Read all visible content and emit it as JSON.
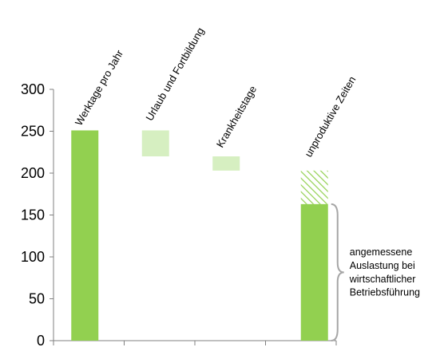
{
  "chart_data": {
    "type": "bar",
    "title": "",
    "xlabel": "",
    "ylabel": "",
    "ylim": [
      0,
      300
    ],
    "yticks": [
      0,
      50,
      100,
      150,
      200,
      250,
      300
    ],
    "grid": false,
    "legend": "none",
    "categories": [
      "Werktage pro Jahr",
      "Urlaub und Fortbildung",
      "Krankheitstage",
      "unproduktive Zeiten"
    ],
    "bars": [
      {
        "category": "Werktage pro Jahr",
        "style": "solid",
        "from": 0,
        "to": 251
      },
      {
        "category": "Urlaub und Fortbildung",
        "style": "light",
        "from": 220,
        "to": 251
      },
      {
        "category": "Krankheitstage",
        "style": "light",
        "from": 203,
        "to": 220
      },
      {
        "category": "unproduktive Zeiten",
        "style": "hatched",
        "from": 163,
        "to": 203
      },
      {
        "category": "unproduktive Zeiten",
        "style": "solid",
        "from": 0,
        "to": 163
      }
    ],
    "annotation": {
      "lines": [
        "angemessene",
        "Auslastung bei",
        "wirtschaftlicher",
        "Betriebsführung"
      ],
      "from": 0,
      "to": 163
    },
    "colors": {
      "solid": "#92d050",
      "light": "#d6efc1",
      "hatch": "#92d050",
      "axis": "#808080",
      "brace": "#a6a6a6"
    }
  }
}
